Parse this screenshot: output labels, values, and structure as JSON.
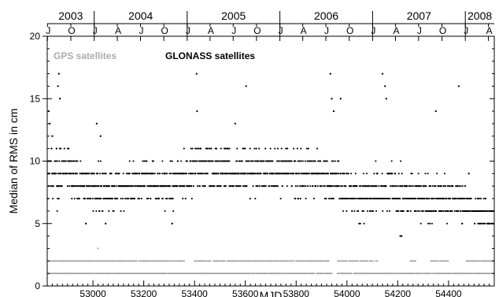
{
  "chart_data": {
    "type": "scatter",
    "xlabel": "MJD",
    "ylabel": "Median of RMS in cm",
    "xlim": [
      52820,
      54580
    ],
    "ylim": [
      0,
      20
    ],
    "x_ticks": [
      53000,
      53200,
      53400,
      53600,
      53800,
      54000,
      54200,
      54400
    ],
    "y_ticks": [
      0,
      5,
      10,
      15,
      20
    ],
    "top_axis": {
      "years": [
        {
          "label": "2003",
          "start_mjd": 52640,
          "end_mjd": 53005
        },
        {
          "label": "2004",
          "start_mjd": 53005,
          "end_mjd": 53371
        },
        {
          "label": "2005",
          "start_mjd": 53371,
          "end_mjd": 53736
        },
        {
          "label": "2006",
          "start_mjd": 53736,
          "end_mjd": 54101
        },
        {
          "label": "2007",
          "start_mjd": 54101,
          "end_mjd": 54466
        },
        {
          "label": "2008",
          "start_mjd": 54466,
          "end_mjd": 54832
        }
      ],
      "quarter_ticks": [
        {
          "label": "J",
          "mjd": 52821
        },
        {
          "label": "O",
          "mjd": 52913
        },
        {
          "label": "J",
          "mjd": 53005
        },
        {
          "label": "A",
          "mjd": 53096
        },
        {
          "label": "J",
          "mjd": 53187
        },
        {
          "label": "O",
          "mjd": 53279
        },
        {
          "label": "J",
          "mjd": 53371
        },
        {
          "label": "A",
          "mjd": 53461
        },
        {
          "label": "J",
          "mjd": 53552
        },
        {
          "label": "O",
          "mjd": 53644
        },
        {
          "label": "J",
          "mjd": 53736
        },
        {
          "label": "A",
          "mjd": 53826
        },
        {
          "label": "J",
          "mjd": 53917
        },
        {
          "label": "O",
          "mjd": 54009
        },
        {
          "label": "J",
          "mjd": 54101
        },
        {
          "label": "A",
          "mjd": 54191
        },
        {
          "label": "J",
          "mjd": 54282
        },
        {
          "label": "O",
          "mjd": 54374
        },
        {
          "label": "J",
          "mjd": 54466
        },
        {
          "label": "A",
          "mjd": 54557
        }
      ]
    },
    "legend": {
      "placement": "top-left"
    },
    "series": [
      {
        "name": "GPS satellites",
        "color": "#aaaaaa",
        "segments": [
          {
            "x_start": 52822,
            "x_end": 53400,
            "y": 1,
            "step": 3
          },
          {
            "x_start": 53400,
            "x_end": 53940,
            "y": 1,
            "step": 3
          },
          {
            "x_start": 53960,
            "x_end": 54578,
            "y": 1,
            "step": 3
          },
          {
            "x_start": 52822,
            "x_end": 53360,
            "y": 2,
            "step": 3
          },
          {
            "x_start": 53400,
            "x_end": 53930,
            "y": 2,
            "step": 3
          },
          {
            "x_start": 53960,
            "x_end": 54120,
            "y": 2,
            "step": 4
          },
          {
            "x_start": 54250,
            "x_end": 54270,
            "y": 2,
            "step": 4
          },
          {
            "x_start": 54330,
            "x_end": 54400,
            "y": 2,
            "step": 4
          },
          {
            "x_start": 54470,
            "x_end": 54578,
            "y": 2,
            "step": 3
          }
        ],
        "extra_points": [
          {
            "x": 53020,
            "y": 3
          }
        ]
      },
      {
        "name": "GLONASS satellites",
        "color": "#000000",
        "level_profile": [
          {
            "x": 52822,
            "y": 8.8,
            "spread": 2.2
          },
          {
            "x": 52880,
            "y": 9.3,
            "spread": 2.5
          },
          {
            "x": 52960,
            "y": 8.2,
            "spread": 2.0
          },
          {
            "x": 53050,
            "y": 7.8,
            "spread": 2.0
          },
          {
            "x": 53120,
            "y": 7.6,
            "spread": 2.0
          },
          {
            "x": 53200,
            "y": 8.6,
            "spread": 1.8
          },
          {
            "x": 53300,
            "y": 8.0,
            "spread": 1.9
          },
          {
            "x": 53420,
            "y": 9.6,
            "spread": 1.9
          },
          {
            "x": 53550,
            "y": 9.2,
            "spread": 1.9
          },
          {
            "x": 53700,
            "y": 9.2,
            "spread": 2.0
          },
          {
            "x": 53850,
            "y": 9.2,
            "spread": 2.0
          },
          {
            "x": 53960,
            "y": 8.6,
            "spread": 2.0
          },
          {
            "x": 54040,
            "y": 7.0,
            "spread": 2.0
          },
          {
            "x": 54150,
            "y": 7.6,
            "spread": 2.3
          },
          {
            "x": 54300,
            "y": 7.0,
            "spread": 2.0
          },
          {
            "x": 54460,
            "y": 6.8,
            "spread": 1.8
          },
          {
            "x": 54520,
            "y": 5.8,
            "spread": 1.3
          },
          {
            "x": 54578,
            "y": 5.6,
            "spread": 1.3
          }
        ],
        "outliers": [
          {
            "x": 52862,
            "y": 16
          },
          {
            "x": 52866,
            "y": 17
          },
          {
            "x": 52870,
            "y": 15
          },
          {
            "x": 52826,
            "y": 14
          },
          {
            "x": 52830,
            "y": 13
          },
          {
            "x": 52840,
            "y": 12
          },
          {
            "x": 53408,
            "y": 17
          },
          {
            "x": 53410,
            "y": 14
          },
          {
            "x": 53603,
            "y": 16
          },
          {
            "x": 53935,
            "y": 17
          },
          {
            "x": 53940,
            "y": 15
          },
          {
            "x": 53948,
            "y": 14
          },
          {
            "x": 53975,
            "y": 15
          },
          {
            "x": 54140,
            "y": 17
          },
          {
            "x": 54150,
            "y": 16
          },
          {
            "x": 54155,
            "y": 15
          },
          {
            "x": 54440,
            "y": 16
          },
          {
            "x": 54350,
            "y": 14
          },
          {
            "x": 53015,
            "y": 13
          },
          {
            "x": 53030,
            "y": 12
          },
          {
            "x": 53560,
            "y": 13
          },
          {
            "x": 54210,
            "y": 4
          },
          {
            "x": 54215,
            "y": 4
          },
          {
            "x": 53312,
            "y": 5
          },
          {
            "x": 52972,
            "y": 5
          },
          {
            "x": 53050,
            "y": 5
          },
          {
            "x": 54480,
            "y": 9
          }
        ]
      }
    ]
  }
}
